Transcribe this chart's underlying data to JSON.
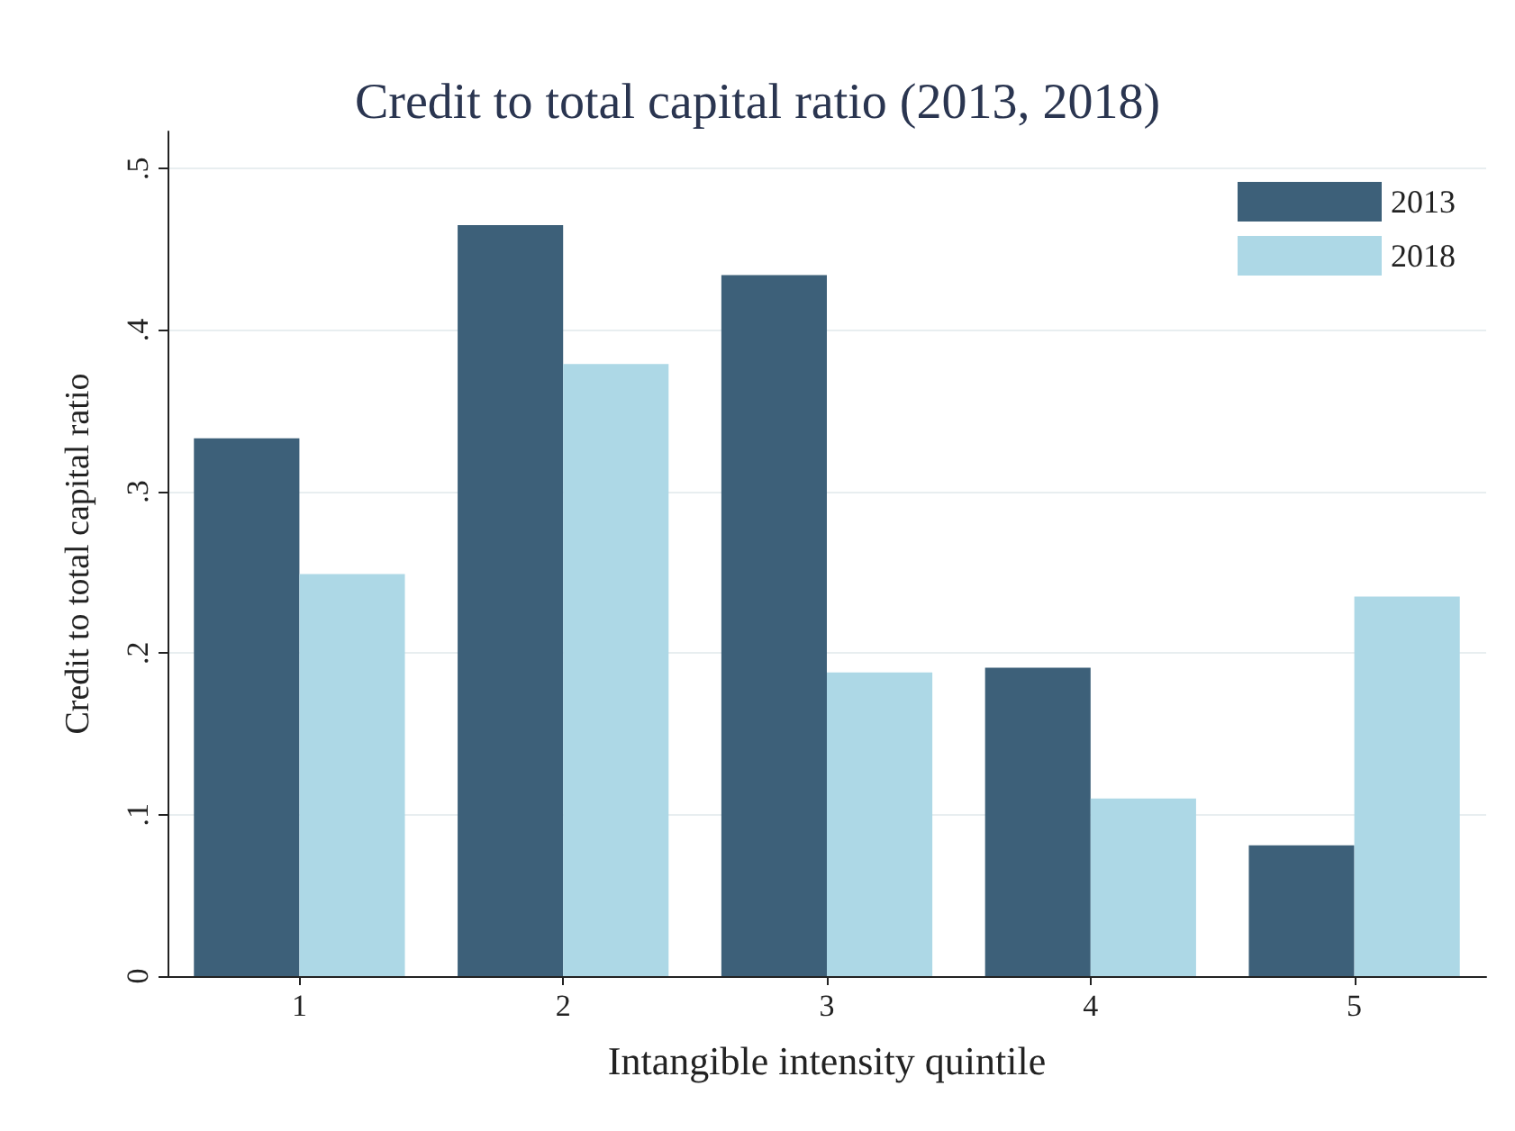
{
  "chart_data": {
    "type": "bar",
    "title": "Credit to total capital ratio (2013, 2018)",
    "xlabel": "Intangible intensity quintile",
    "ylabel": "Credit to total capital ratio",
    "categories": [
      "1",
      "2",
      "3",
      "4",
      "5"
    ],
    "series": [
      {
        "name": "2013",
        "color": "#3d6079",
        "values": [
          0.333,
          0.465,
          0.434,
          0.191,
          0.081
        ]
      },
      {
        "name": "2018",
        "color": "#add8e6",
        "values": [
          0.249,
          0.379,
          0.188,
          0.11,
          0.235
        ]
      }
    ],
    "ylim": [
      0,
      0.523
    ],
    "yticks": [
      0,
      {
        "value": 0.1,
        "label": ".1"
      },
      {
        "value": 0.2,
        "label": ".2"
      },
      {
        "value": 0.3,
        "label": ".3"
      },
      {
        "value": 0.4,
        "label": ".4"
      },
      {
        "value": 0.5,
        "label": ".5"
      }
    ],
    "grid": "y",
    "legend": "top right"
  }
}
